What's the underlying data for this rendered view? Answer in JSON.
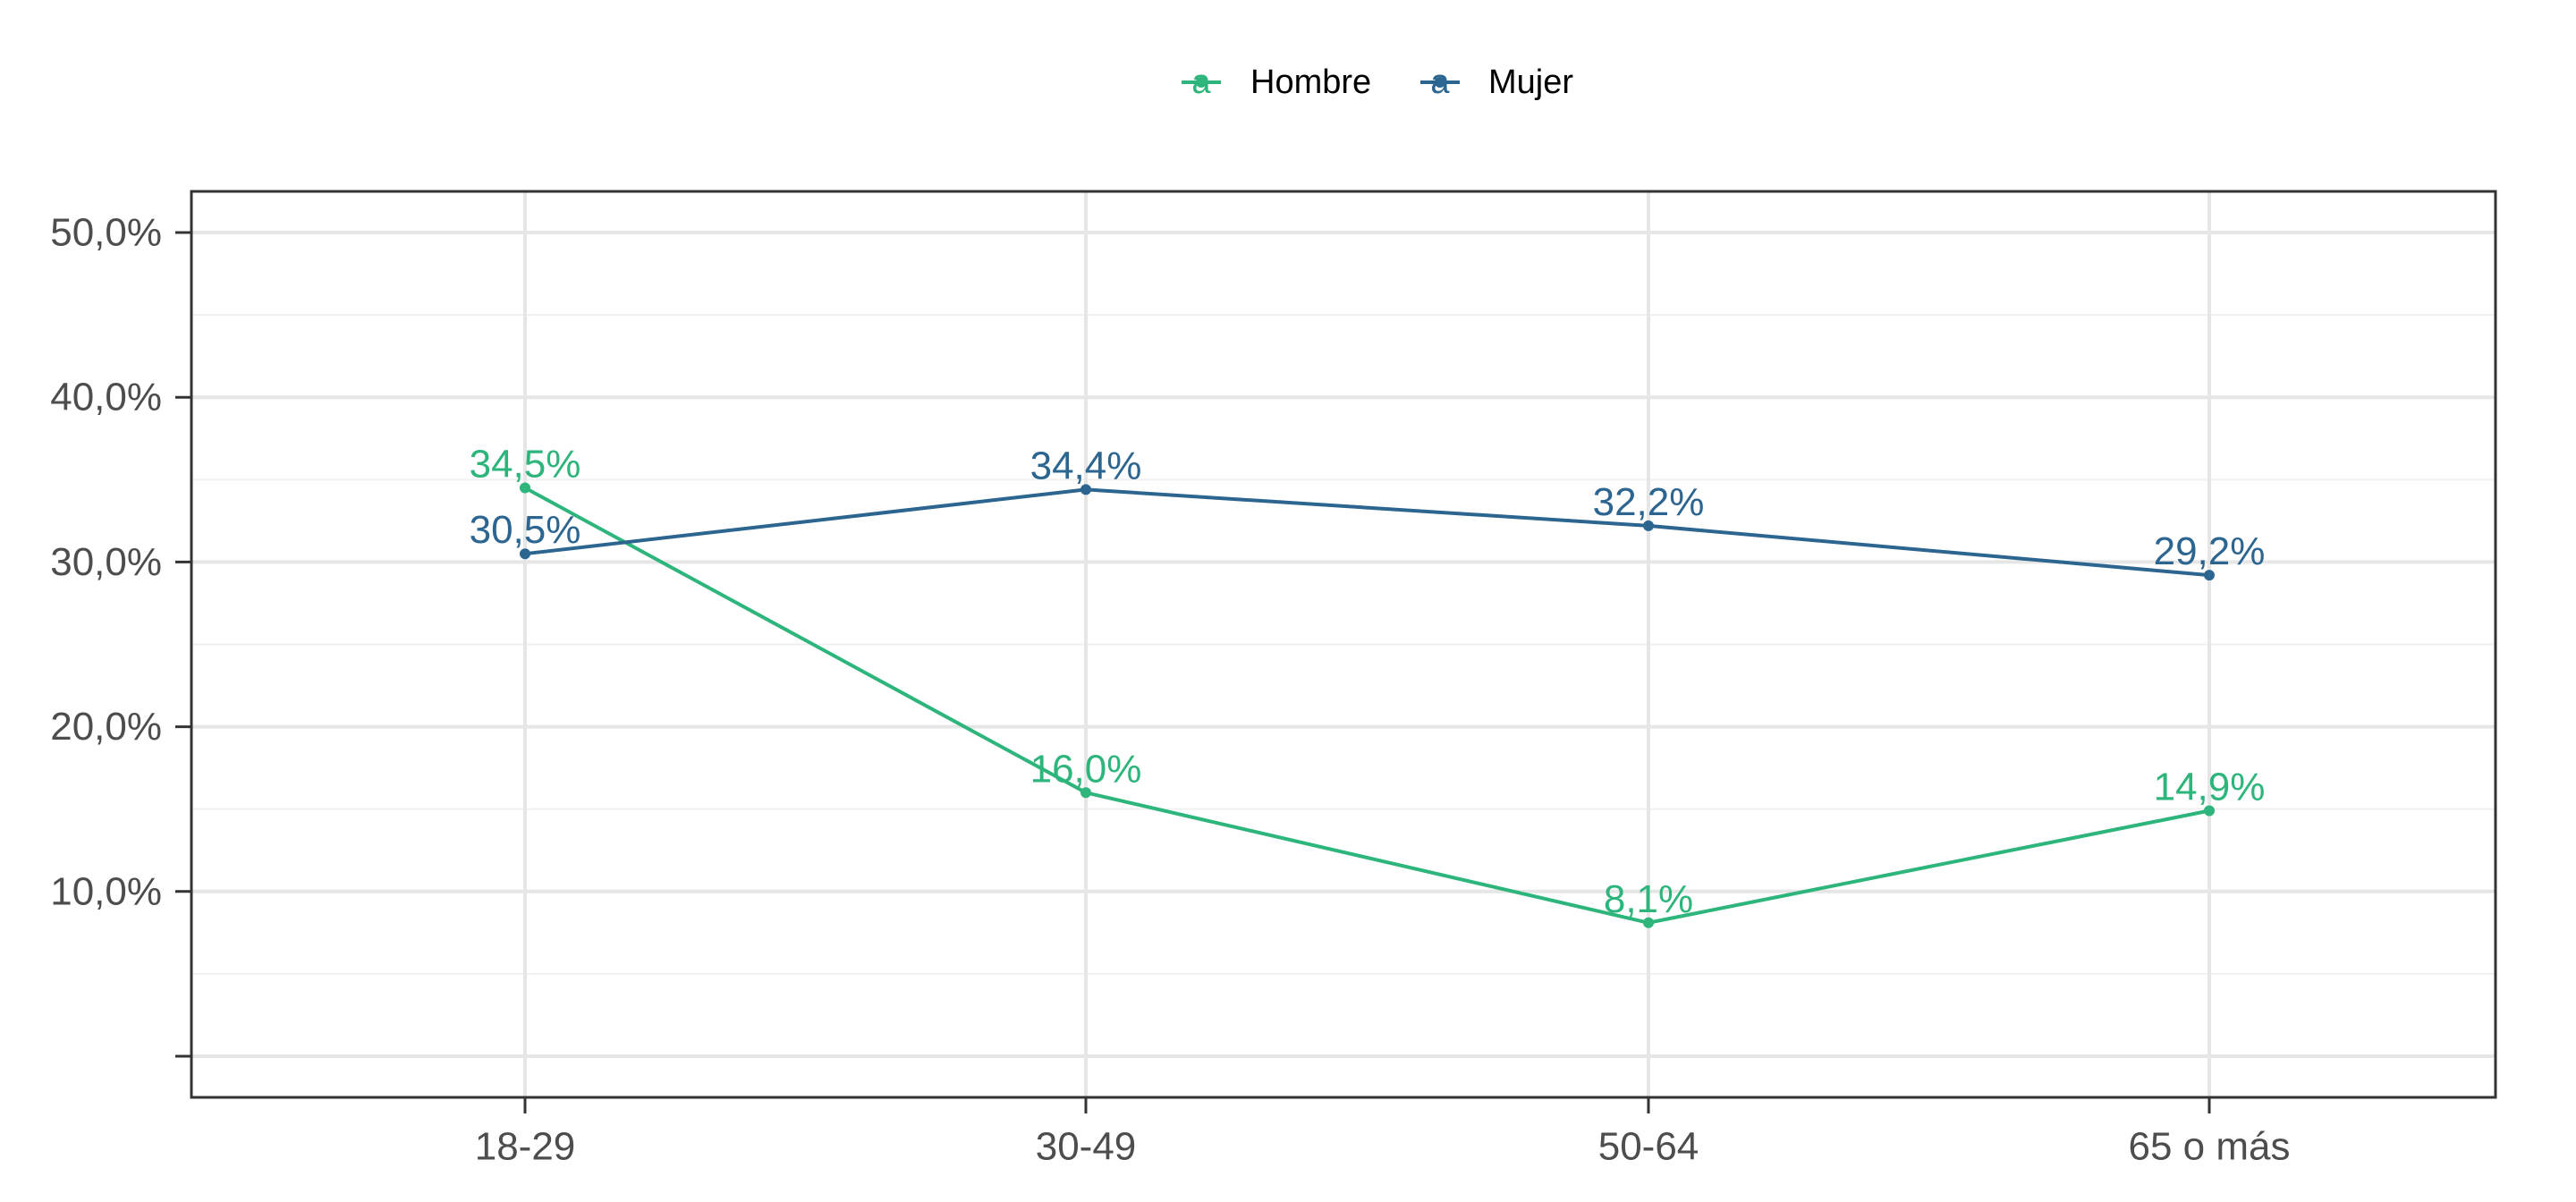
{
  "chart_data": {
    "type": "line",
    "categories": [
      "18-29",
      "30-49",
      "50-64",
      "65 o más"
    ],
    "series": [
      {
        "name": "Hombre",
        "color": "#2db57b",
        "values": [
          34.5,
          16.0,
          8.1,
          14.9
        ],
        "labels": [
          "34,5%",
          "16,0%",
          "8,1%",
          "14,9%"
        ]
      },
      {
        "name": "Mujer",
        "color": "#2c6590",
        "values": [
          30.5,
          34.4,
          32.2,
          29.2
        ],
        "labels": [
          "30,5%",
          "34,4%",
          "32,2%",
          "29,2%"
        ]
      }
    ],
    "y_ticks": [
      0,
      10,
      20,
      30,
      40,
      50
    ],
    "y_tick_labels": [
      "",
      "10,0%",
      "20,0%",
      "30,0%",
      "40,0%",
      "50,0%"
    ],
    "ylim": [
      -2.5,
      52.5
    ],
    "legend_position": "top",
    "legend_key_glyph": "a",
    "grid": true,
    "title": "",
    "xlabel": "",
    "ylabel": ""
  }
}
